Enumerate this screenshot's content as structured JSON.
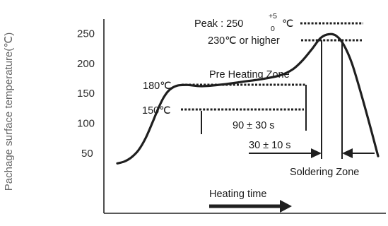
{
  "chart_data": {
    "type": "line",
    "title": "",
    "ylabel": "Pachage surface temperature(℃)",
    "xlabel": "",
    "y_ticks": [
      "250",
      "200",
      "150",
      "100",
      "50"
    ],
    "y_tick_values": [
      250,
      200,
      150,
      100,
      50
    ],
    "ylim": [
      28,
      258
    ],
    "grid": false,
    "legend": "none",
    "series": [
      {
        "values": [
          [
            0,
            33
          ],
          [
            10,
            36
          ],
          [
            20,
            43
          ],
          [
            30,
            55
          ],
          [
            40,
            75
          ],
          [
            50,
            102
          ],
          [
            58,
            125
          ],
          [
            66,
            144
          ],
          [
            74,
            156
          ],
          [
            85,
            163
          ],
          [
            100,
            164
          ],
          [
            120,
            162
          ],
          [
            150,
            165
          ],
          [
            175,
            169
          ],
          [
            205,
            174
          ],
          [
            230,
            180
          ],
          [
            248,
            190
          ],
          [
            262,
            205
          ],
          [
            276,
            225
          ],
          [
            288,
            243
          ],
          [
            300,
            249
          ],
          [
            310,
            246
          ],
          [
            320,
            232
          ],
          [
            332,
            200
          ],
          [
            346,
            145
          ],
          [
            360,
            85
          ],
          [
            369,
            45
          ]
        ]
      }
    ],
    "annotations": {
      "peak_label": "Peak : 250",
      "peak_sup": "+5",
      "peak_sub": "0",
      "peak_unit": "℃",
      "above230": "230℃ or higher",
      "preheat": "Pre Heating Zone",
      "t180": "180℃",
      "t150": "150℃",
      "preheat_time": "90 ±  30 s",
      "solder_time": "30 ±  10 s",
      "soldering_zone": "Soldering Zone",
      "heating_time": "Heating time"
    },
    "colors": {
      "line": "#1f1f1f",
      "text": "#1a1a1a",
      "ylabel": "#666666"
    }
  }
}
